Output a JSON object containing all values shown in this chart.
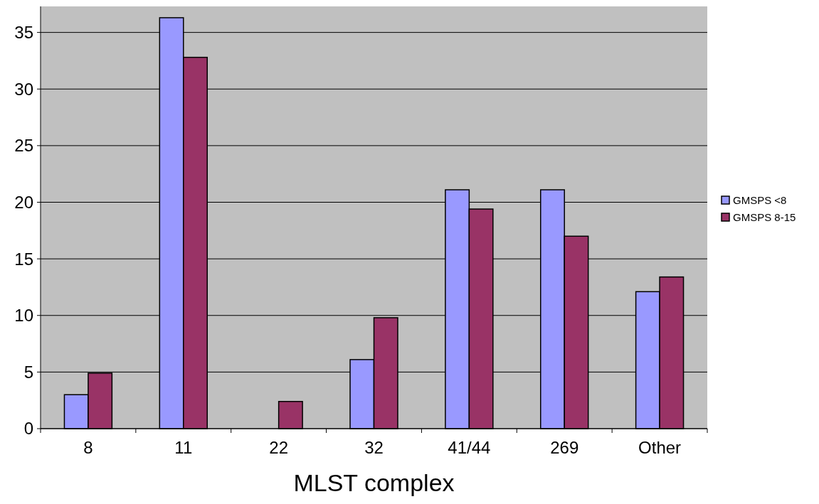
{
  "chart_data": {
    "type": "bar",
    "xlabel": "MLST complex",
    "categories": [
      "8",
      "11",
      "22",
      "32",
      "41/44",
      "269",
      "Other"
    ],
    "series": [
      {
        "name": "GMSPS <8",
        "color": "#9999ff",
        "values": [
          3,
          36.3,
          0,
          6.1,
          21.1,
          21.1,
          12.1
        ]
      },
      {
        "name": "GMSPS 8-15",
        "color": "#993366",
        "values": [
          4.9,
          32.8,
          2.4,
          9.8,
          19.4,
          17,
          13.4
        ]
      }
    ],
    "ylim": [
      0,
      37.3
    ],
    "yticks": [
      0,
      5,
      10,
      15,
      20,
      25,
      30,
      35
    ],
    "grid": "y",
    "legend": "right"
  }
}
